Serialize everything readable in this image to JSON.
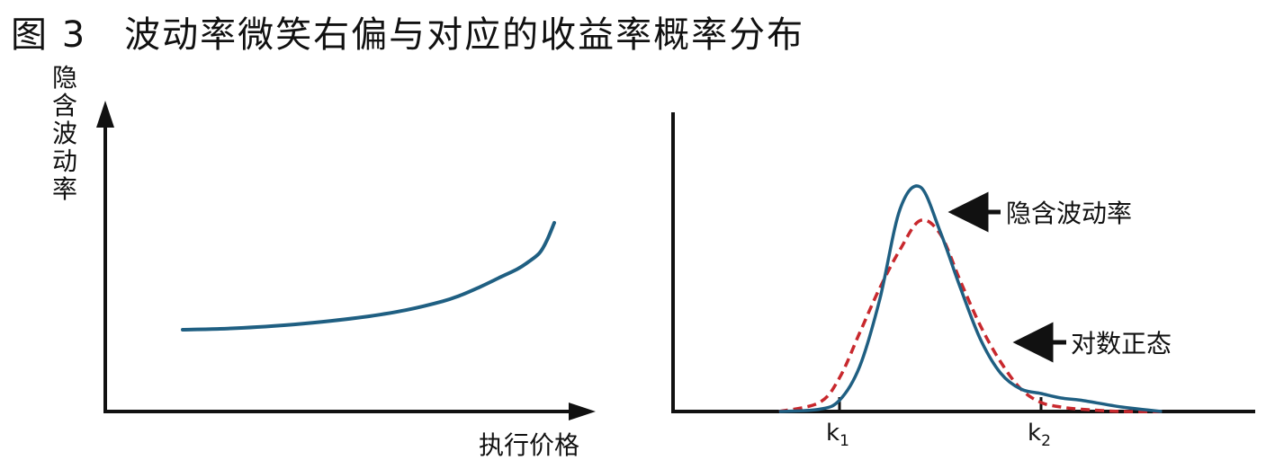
{
  "figure": {
    "title": "图 3　波动率微笑右偏与对应的收益率概率分布"
  },
  "colors": {
    "axis": "#111111",
    "blue": "#1f5f82",
    "red": "#c8282d"
  },
  "chart_data": [
    {
      "type": "line",
      "ylabel": "隐含波动率",
      "xlabel": "执行价格",
      "series": [
        {
          "values_note": "",
          "color": "#1f5f82",
          "x": [
            0,
            0.1,
            0.2,
            0.3,
            0.4,
            0.5,
            0.6,
            0.7,
            0.75,
            0.8,
            0.85,
            0.9,
            0.93,
            0.96,
            0.98,
            1.0
          ],
          "y": [
            0.0,
            0.005,
            0.015,
            0.03,
            0.05,
            0.075,
            0.11,
            0.16,
            0.195,
            0.24,
            0.29,
            0.34,
            0.38,
            0.43,
            0.5,
            0.6
          ]
        }
      ]
    },
    {
      "type": "line",
      "annotations": [
        "隐含波动率",
        "对数正态"
      ],
      "ticks": [
        {
          "base": "k",
          "sub": "1"
        },
        {
          "base": "k",
          "sub": "2"
        }
      ],
      "series": [
        {
          "name": "隐含波动率",
          "style": "solid",
          "color": "#1f5f82",
          "x": [
            -0.3,
            -0.1,
            0.0,
            0.1,
            0.2,
            0.3,
            0.4,
            0.5,
            0.6,
            0.7,
            0.8,
            0.9,
            1.0,
            1.1,
            1.2,
            1.4,
            1.6
          ],
          "y": [
            0.0,
            0.01,
            0.05,
            0.2,
            0.5,
            0.9,
            1.0,
            0.8,
            0.55,
            0.32,
            0.17,
            0.1,
            0.08,
            0.06,
            0.05,
            0.02,
            0.0
          ]
        },
        {
          "name": "对数正态",
          "style": "dashed",
          "color": "#c8282d",
          "x": [
            -0.3,
            -0.1,
            0.0,
            0.1,
            0.2,
            0.3,
            0.4,
            0.5,
            0.6,
            0.7,
            0.8,
            0.9,
            1.0,
            1.1,
            1.2,
            1.4,
            1.6
          ],
          "y": [
            0.0,
            0.04,
            0.15,
            0.35,
            0.55,
            0.72,
            0.85,
            0.79,
            0.58,
            0.38,
            0.22,
            0.1,
            0.04,
            0.02,
            0.01,
            0.0,
            0.0
          ]
        }
      ]
    }
  ]
}
